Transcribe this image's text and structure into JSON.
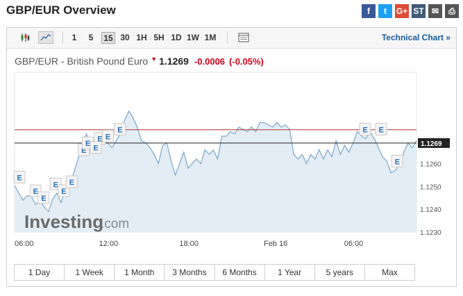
{
  "page": {
    "title": "GBP/EUR Overview"
  },
  "share_icons": [
    {
      "name": "facebook-icon",
      "glyph": "f",
      "color": "#3b5998"
    },
    {
      "name": "twitter-icon",
      "glyph": "t",
      "color": "#1da1f2"
    },
    {
      "name": "google-plus-icon",
      "glyph": "G+",
      "color": "#dd4b39"
    },
    {
      "name": "stocktwits-icon",
      "glyph": "ST",
      "color": "#405a78"
    },
    {
      "name": "email-icon",
      "glyph": "✉",
      "color": "#555555"
    },
    {
      "name": "print-icon",
      "glyph": "⎙",
      "color": "#555555"
    }
  ],
  "toolbar": {
    "chart_types": [
      {
        "icon": "candlestick-icon",
        "active": false
      },
      {
        "icon": "area-chart-icon",
        "active": true
      }
    ],
    "timeframes": [
      {
        "label": "1",
        "active": false
      },
      {
        "label": "5",
        "active": false
      },
      {
        "label": "15",
        "active": true
      },
      {
        "label": "30",
        "active": false
      },
      {
        "label": "1H",
        "active": false
      },
      {
        "label": "5H",
        "active": false
      },
      {
        "label": "1D",
        "active": false
      },
      {
        "label": "1W",
        "active": false
      },
      {
        "label": "1M",
        "active": false
      }
    ],
    "settings_icon": "chart-settings-icon",
    "technical_chart_label": "Technical Chart »"
  },
  "quote": {
    "name": "GBP/EUR - British Pound Euro",
    "direction": "down",
    "price": "1.1269",
    "change": "-0.0006",
    "change_pct": "(-0.05%)"
  },
  "watermark": {
    "brand": "Investing",
    "suffix": ".com"
  },
  "chart_data": {
    "type": "area",
    "title": "",
    "xlabel": "",
    "ylabel": "",
    "ylim": [
      1.123,
      1.13
    ],
    "x_ticks": [
      "06:00",
      "12:00",
      "18:00",
      "Feb 16",
      "06:00"
    ],
    "y_ticks": [
      "1.1230",
      "1.1240",
      "1.1250",
      "1.1260"
    ],
    "current_price_label": "1.1269",
    "current_price": 1.1269,
    "previous_close": 1.12748,
    "fill_color": "#e3edf5",
    "line_color": "#7aa6c9",
    "prev_close_color": "#b03030",
    "values": [
      1.12505,
      1.1247,
      1.1244,
      1.1246,
      1.12455,
      1.1242,
      1.1244,
      1.1241,
      1.1239,
      1.12445,
      1.1247,
      1.1243,
      1.1248,
      1.12505,
      1.1256,
      1.1262,
      1.1269,
      1.1273,
      1.1268,
      1.1265,
      1.1271,
      1.1273,
      1.1269,
      1.1267,
      1.127,
      1.1273,
      1.1279,
      1.1283,
      1.128,
      1.1276,
      1.127,
      1.1269,
      1.1267,
      1.1264,
      1.126,
      1.1268,
      1.1269,
      1.1261,
      1.1255,
      1.126,
      1.1265,
      1.1258,
      1.126,
      1.1262,
      1.126,
      1.1266,
      1.1264,
      1.1266,
      1.1262,
      1.1272,
      1.1272,
      1.1274,
      1.1273,
      1.1276,
      1.1275,
      1.1274,
      1.1276,
      1.1274,
      1.1278,
      1.1278,
      1.1277,
      1.1276,
      1.1278,
      1.1276,
      1.1277,
      1.1275,
      1.1264,
      1.1262,
      1.1264,
      1.126,
      1.1264,
      1.1262,
      1.1266,
      1.1262,
      1.1266,
      1.1263,
      1.127,
      1.1264,
      1.1268,
      1.1265,
      1.1269,
      1.1274,
      1.1272,
      1.1271,
      1.1274,
      1.1271,
      1.1267,
      1.1263,
      1.1261,
      1.1256,
      1.1257,
      1.126,
      1.1265,
      1.1269,
      1.1267,
      1.127
    ],
    "events": [
      {
        "label": "E",
        "value": 1.1253
      },
      {
        "label": "E",
        "value": 1.1247
      },
      {
        "label": "E",
        "value": 1.1244
      },
      {
        "label": "E",
        "value": 1.125
      },
      {
        "label": "E",
        "value": 1.1247
      },
      {
        "label": "E",
        "value": 1.1251
      },
      {
        "label": "E",
        "value": 1.1265
      },
      {
        "label": "E",
        "value": 1.1268
      },
      {
        "label": "E",
        "value": 1.127
      },
      {
        "label": "E",
        "value": 1.1266
      },
      {
        "label": "E",
        "value": 1.1271
      },
      {
        "label": "E",
        "value": 1.1274
      },
      {
        "label": "E",
        "value": 1.1274
      },
      {
        "label": "E",
        "value": 1.1274
      },
      {
        "label": "E",
        "value": 1.126
      }
    ]
  },
  "periods": [
    "1 Day",
    "1 Week",
    "1 Month",
    "3 Months",
    "6 Months",
    "1 Year",
    "5 years",
    "Max"
  ]
}
